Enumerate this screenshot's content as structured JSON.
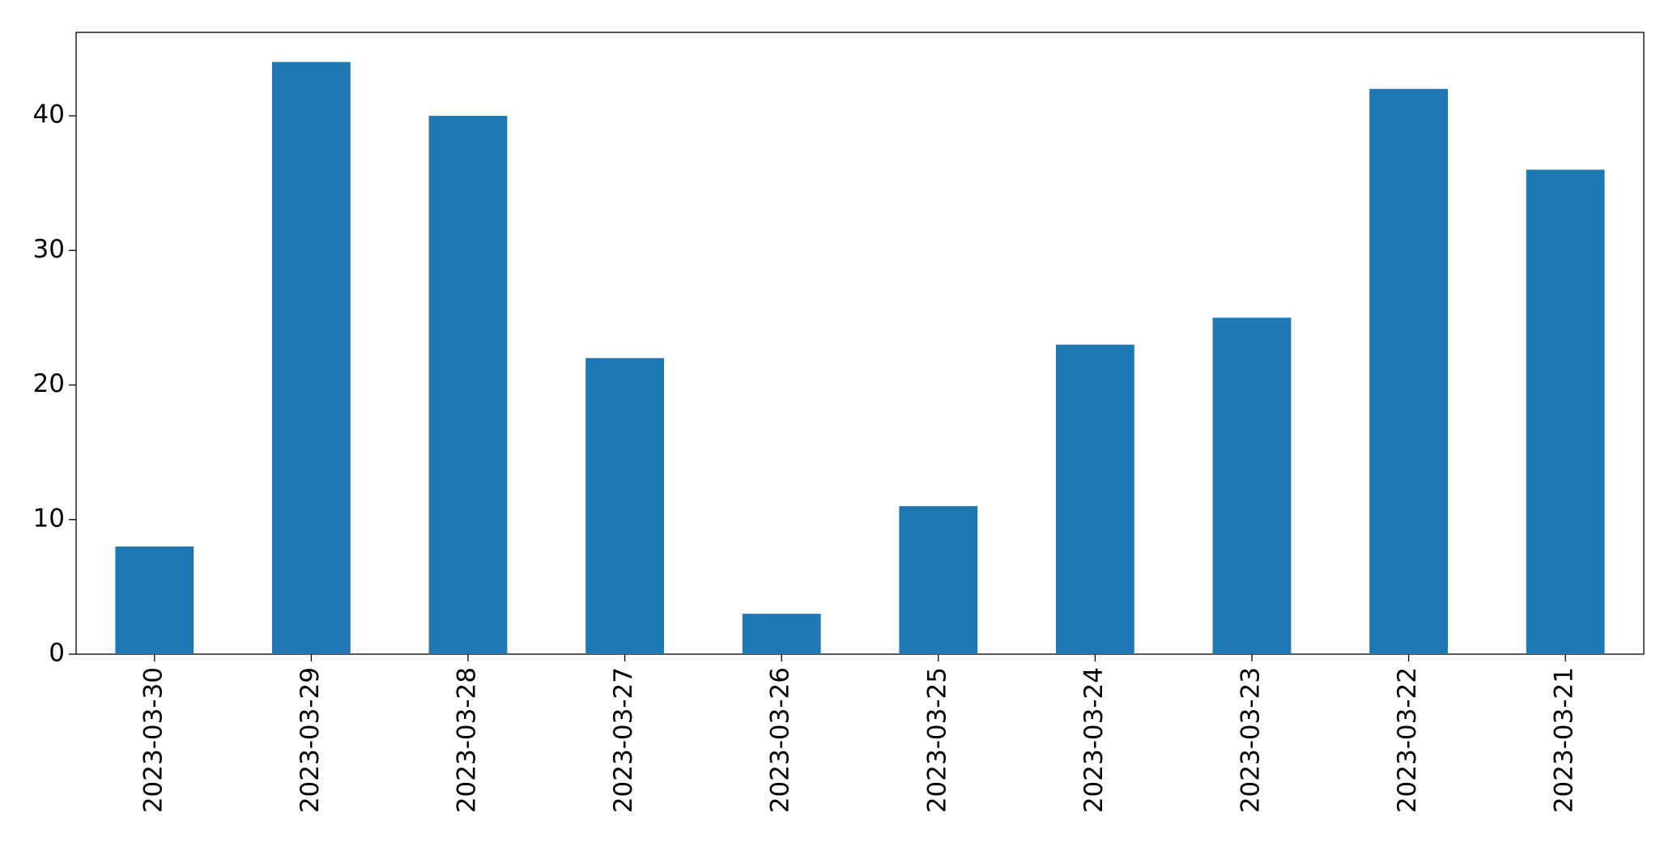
{
  "chart_data": {
    "type": "bar",
    "categories": [
      "2023-03-30",
      "2023-03-29",
      "2023-03-28",
      "2023-03-27",
      "2023-03-26",
      "2023-03-25",
      "2023-03-24",
      "2023-03-23",
      "2023-03-22",
      "2023-03-21"
    ],
    "values": [
      8,
      44,
      40,
      22,
      3,
      11,
      23,
      25,
      42,
      36
    ],
    "color": "#1f77b4",
    "ylim": [
      0,
      46.2
    ],
    "yticks": [
      0,
      10,
      20,
      30,
      40
    ],
    "grid": false
  }
}
